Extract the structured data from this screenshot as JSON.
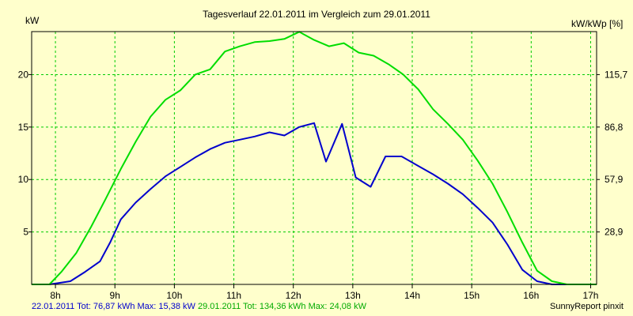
{
  "chart_data": {
    "type": "line",
    "title": "Tagesverlauf 22.01.2011 im Vergleich zum 29.01.2011",
    "ylabel_left": "kW",
    "ylabel_right": "kW/kWp [%]",
    "xlim": [
      7.6,
      17.1
    ],
    "ylim": [
      0,
      24.1
    ],
    "x_ticks": [
      8,
      9,
      10,
      11,
      12,
      13,
      14,
      15,
      16,
      17
    ],
    "x_tick_labels": [
      "8h",
      "9h",
      "10h",
      "11h",
      "12h",
      "13h",
      "14h",
      "15h",
      "16h",
      "17h"
    ],
    "y_ticks": [
      5,
      10,
      15,
      20
    ],
    "y_tick_labels": [
      "5",
      "10",
      "15",
      "20"
    ],
    "y2_ticks": [
      5,
      10,
      15,
      20
    ],
    "y2_tick_labels": [
      "28,9",
      "57,9",
      "86,8",
      "115,7"
    ],
    "grid": true,
    "series": [
      {
        "name": "22.01.2011",
        "color": "#0000cc",
        "x": [
          7.6,
          7.9,
          8.25,
          8.5,
          8.75,
          8.92,
          9.1,
          9.35,
          9.6,
          9.85,
          10.1,
          10.35,
          10.6,
          10.85,
          11.1,
          11.35,
          11.6,
          11.85,
          12.1,
          12.35,
          12.55,
          12.82,
          13.05,
          13.3,
          13.55,
          13.82,
          14.1,
          14.35,
          14.6,
          14.85,
          15.1,
          15.35,
          15.6,
          15.85,
          16.1,
          16.35,
          16.6,
          16.85,
          17.1
        ],
        "y": [
          0,
          0,
          0.3,
          1.2,
          2.2,
          4.0,
          6.2,
          7.8,
          9.1,
          10.3,
          11.2,
          12.1,
          12.9,
          13.5,
          13.8,
          14.1,
          14.5,
          14.2,
          15.0,
          15.38,
          11.7,
          15.3,
          10.2,
          9.3,
          12.2,
          12.2,
          11.3,
          10.5,
          9.6,
          8.6,
          7.3,
          5.9,
          3.8,
          1.4,
          0.3,
          0,
          0,
          0,
          0
        ]
      },
      {
        "name": "29.01.2011",
        "color": "#00dd00",
        "x": [
          7.6,
          7.9,
          8.1,
          8.35,
          8.6,
          8.85,
          9.1,
          9.35,
          9.6,
          9.85,
          10.1,
          10.35,
          10.6,
          10.85,
          11.1,
          11.35,
          11.6,
          11.85,
          12.1,
          12.35,
          12.6,
          12.85,
          13.1,
          13.35,
          13.6,
          13.85,
          14.1,
          14.35,
          14.6,
          14.85,
          15.1,
          15.35,
          15.6,
          15.85,
          16.1,
          16.35,
          16.6,
          16.85,
          17.1
        ],
        "y": [
          0,
          0,
          1.2,
          3.0,
          5.5,
          8.2,
          11.0,
          13.6,
          16.0,
          17.6,
          18.5,
          20.0,
          20.5,
          22.2,
          22.7,
          23.1,
          23.2,
          23.4,
          24.08,
          23.3,
          22.7,
          23.0,
          22.1,
          21.8,
          21.0,
          20.0,
          18.6,
          16.7,
          15.3,
          13.8,
          11.8,
          9.6,
          6.9,
          4.0,
          1.3,
          0.3,
          0,
          0,
          0
        ]
      }
    ]
  },
  "footer": {
    "series1_summary": "22.01.2011 Tot: 76,87 kWh Max: 15,38 kW",
    "series2_summary": "29.01.2011 Tot: 134,36 kWh Max: 24,08 kW",
    "brand": "SunnyReport pinxit"
  },
  "colors": {
    "background": "#ffffcc",
    "grid": "#00cc00",
    "axis": "#000000"
  }
}
